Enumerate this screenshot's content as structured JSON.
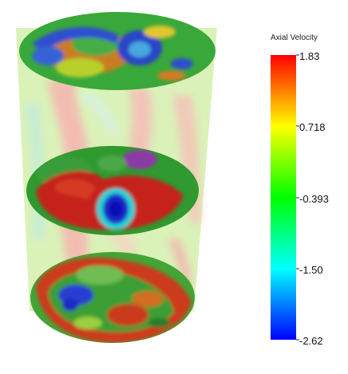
{
  "legend": {
    "title": "Axial Velocity",
    "ticks": [
      "1.83",
      "0.718",
      "-0.393",
      "-1.50",
      "-2.62"
    ],
    "colors": [
      "#ff0000",
      "#ffff00",
      "#00ff00",
      "#00ffff",
      "#0000ff"
    ]
  }
}
